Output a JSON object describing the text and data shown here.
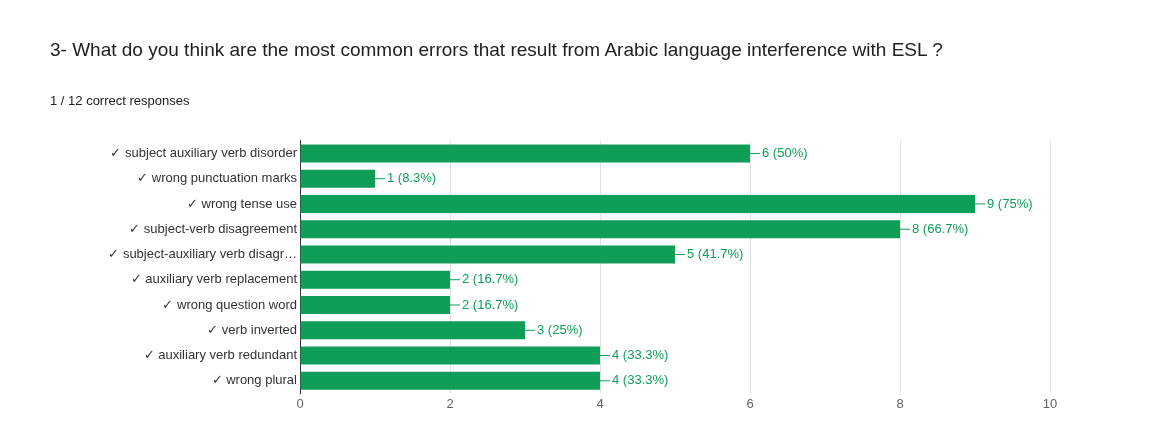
{
  "chart_data": {
    "type": "bar",
    "orientation": "horizontal",
    "title": "3- What do you think are the most common errors that result from Arabic language interference with ESL ?",
    "subtitle": "1 / 12 correct responses",
    "categories": [
      "✓ subject auxiliary verb disorder",
      "✓ wrong punctuation marks",
      "✓ wrong tense use",
      "✓ subject-verb disagreement",
      "✓ subject-auxiliary verb disagr…",
      "✓ auxiliary verb replacement",
      "✓ wrong question word",
      "✓ verb inverted",
      "✓ auxiliary verb redundant",
      "✓ wrong plural"
    ],
    "values": [
      6,
      1,
      9,
      8,
      5,
      2,
      2,
      3,
      4,
      4
    ],
    "value_labels": [
      "6 (50%)",
      "1 (8.3%)",
      "9 (75%)",
      "8 (66.7%)",
      "5 (41.7%)",
      "2 (16.7%)",
      "2 (16.7%)",
      "3 (25%)",
      "4 (33.3%)",
      "4 (33.3%)"
    ],
    "color": "#0f9d58",
    "xlim": [
      0,
      10
    ],
    "xticks": [
      0,
      2,
      4,
      6,
      8,
      10
    ],
    "grid": "x"
  }
}
